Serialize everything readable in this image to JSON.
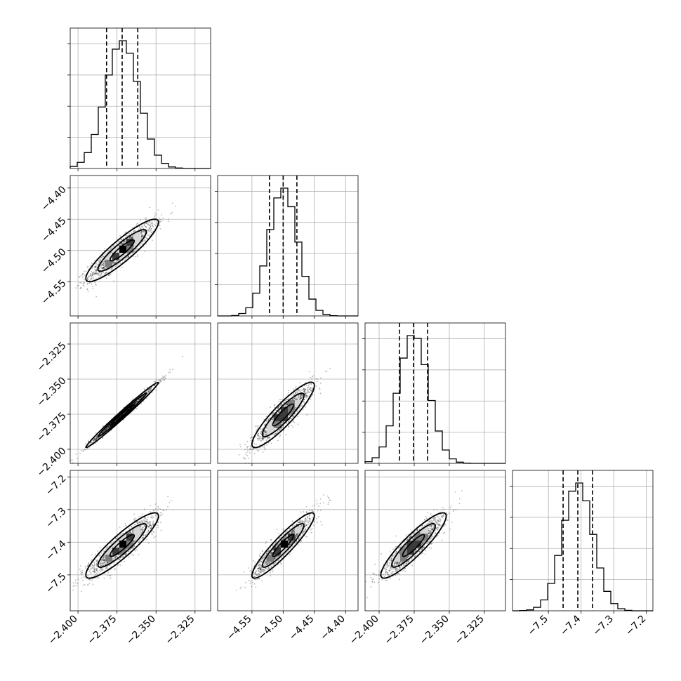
{
  "chart_data": {
    "type": "corner",
    "grid": "on",
    "parameters": [
      {
        "key": "p0",
        "mean": -2.3717,
        "sigma": 0.0107,
        "range": [
          -2.405,
          -2.315
        ],
        "ticks": [
          -2.4,
          -2.375,
          -2.35,
          -2.325
        ],
        "tick_labels": [
          "−2.400",
          "−2.375",
          "−2.350",
          "−2.325"
        ],
        "quantiles": [
          -2.3817,
          -2.3717,
          -2.3617
        ]
      },
      {
        "key": "p1",
        "mean": -4.5,
        "sigma": 0.023,
        "range": [
          -4.605,
          -4.38
        ],
        "ticks": [
          -4.55,
          -4.5,
          -4.45,
          -4.4
        ],
        "tick_labels": [
          "−4.55",
          "−4.50",
          "−4.45",
          "−4.40"
        ],
        "quantiles": [
          -4.522,
          -4.5,
          -4.478
        ]
      },
      {
        "key": "p2",
        "mean": -2.3755,
        "sigma": 0.0107,
        "range": [
          -2.41,
          -2.31
        ],
        "ticks": [
          -2.4,
          -2.375,
          -2.35,
          -2.325
        ],
        "tick_labels": [
          "−2.400",
          "−2.375",
          "−2.350",
          "−2.325"
        ],
        "quantiles": [
          -2.3855,
          -2.3755,
          -2.3655
        ]
      },
      {
        "key": "p3",
        "mean": -7.41,
        "sigma": 0.046,
        "range": [
          -7.61,
          -7.18
        ],
        "ticks": [
          -7.5,
          -7.4,
          -7.3,
          -7.2
        ],
        "tick_labels": [
          "−7.5",
          "−7.4",
          "−7.3",
          "−7.2"
        ],
        "quantiles": [
          -7.455,
          -7.41,
          -7.365
        ]
      }
    ],
    "correlations": [
      [
        1.0,
        0.9,
        0.99,
        0.9
      ],
      [
        0.9,
        1.0,
        0.9,
        0.92
      ],
      [
        0.99,
        0.9,
        1.0,
        0.9
      ],
      [
        0.9,
        0.92,
        0.9,
        1.0
      ]
    ],
    "quantile_levels": [
      0.16,
      0.5,
      0.84
    ],
    "contour_levels_sigma": [
      0.5,
      1.0,
      1.5
    ],
    "histogram_bins": 20
  }
}
